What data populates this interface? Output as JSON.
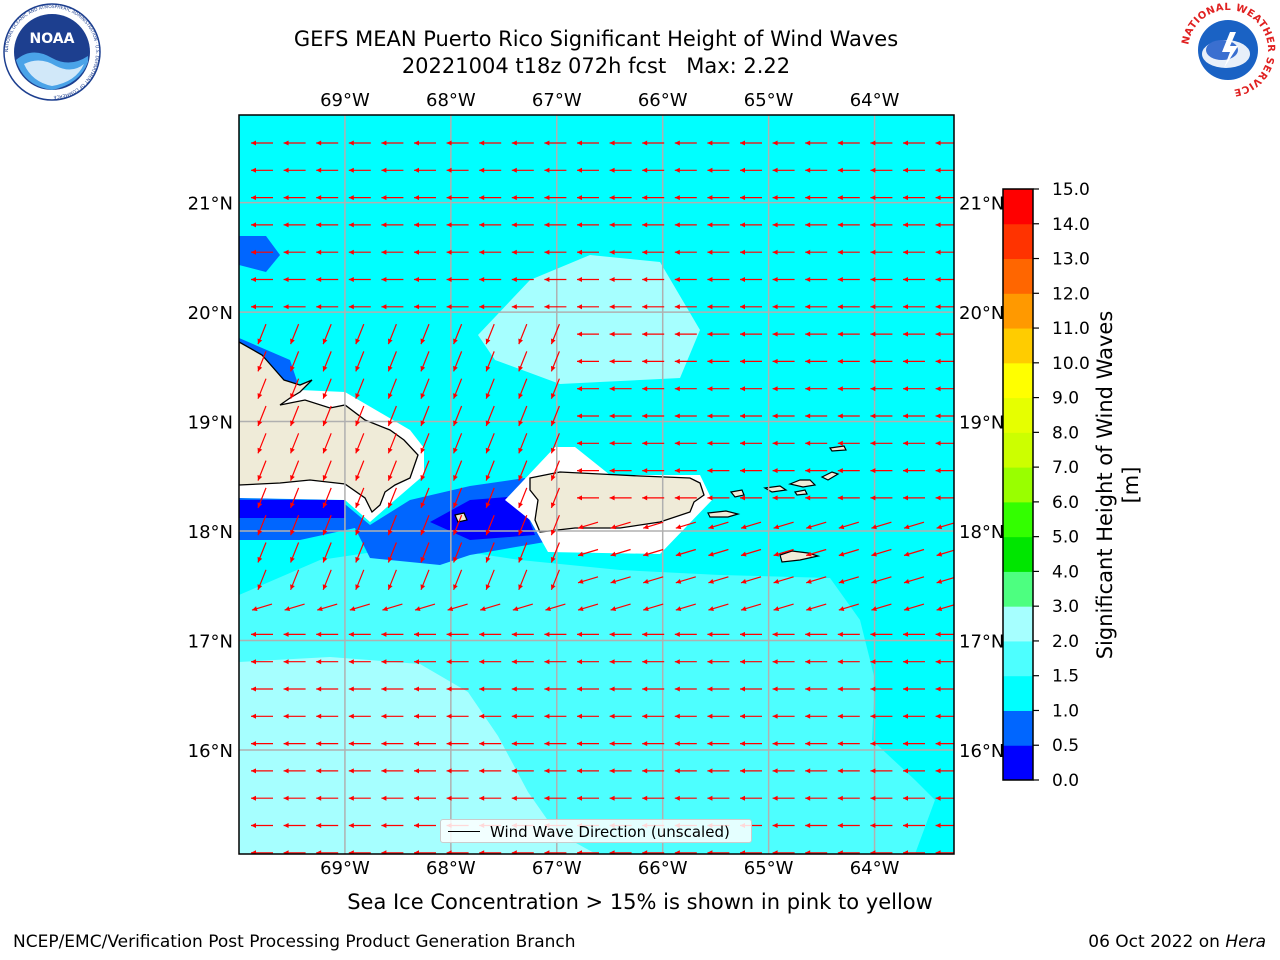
{
  "header": {
    "title_line1": "GEFS MEAN Puerto Rico Significant Height of Wind Waves",
    "title_line2": "20221004 t18z 072h fcst   Max: 2.22"
  },
  "logos": {
    "left_icon": "noaa-logo",
    "left_text": "NOAA",
    "left_ring_text": "NATIONAL OCEANIC AND ATMOSPHERIC ADMINISTRATION · U.S. DEPARTMENT OF COMMERCE",
    "right_icon": "nws-logo",
    "right_ring_text": "NATIONAL WEATHER SERVICE"
  },
  "map": {
    "lon_labels": [
      "69°W",
      "68°W",
      "67°W",
      "66°W",
      "65°W",
      "64°W"
    ],
    "lat_labels": [
      "21°N",
      "20°N",
      "19°N",
      "18°N",
      "17°N",
      "16°N"
    ],
    "lon_values": [
      -69,
      -68,
      -67,
      -66,
      -65,
      -64
    ],
    "lat_values": [
      21,
      20,
      19,
      18,
      17,
      16
    ],
    "lon_range": [
      -70,
      -63.25
    ],
    "lat_range": [
      15.05,
      21.8
    ],
    "arrow_color": "#ff0000",
    "land_color": "#efebd8",
    "ocean_base_color": "#00ffff"
  },
  "legend": {
    "label": "Wind Wave Direction (unscaled)"
  },
  "colorbar": {
    "label": "Significant Height of Wind Waves [m]",
    "ticks": [
      "0.0",
      "0.5",
      "1.0",
      "1.5",
      "2.0",
      "3.0",
      "4.0",
      "5.0",
      "6.0",
      "7.0",
      "8.0",
      "9.0",
      "10.0",
      "11.0",
      "12.0",
      "13.0",
      "14.0",
      "15.0"
    ],
    "colors": [
      "#0000ff",
      "#0066ff",
      "#00ffff",
      "#4dffff",
      "#a6ffff",
      "#4dff80",
      "#00e600",
      "#33ff00",
      "#99ff00",
      "#ccff00",
      "#e6ff00",
      "#ffff00",
      "#ffcc00",
      "#ff9900",
      "#ff6600",
      "#ff3300",
      "#ff0000"
    ]
  },
  "subtitle": "Sea Ice Concentration > 15% is shown in pink to yellow",
  "footer": {
    "left": "NCEP/EMC/Verification Post Processing Product Generation Branch",
    "right_prefix": "06 Oct 2022 on",
    "right_host": "Hera"
  }
}
